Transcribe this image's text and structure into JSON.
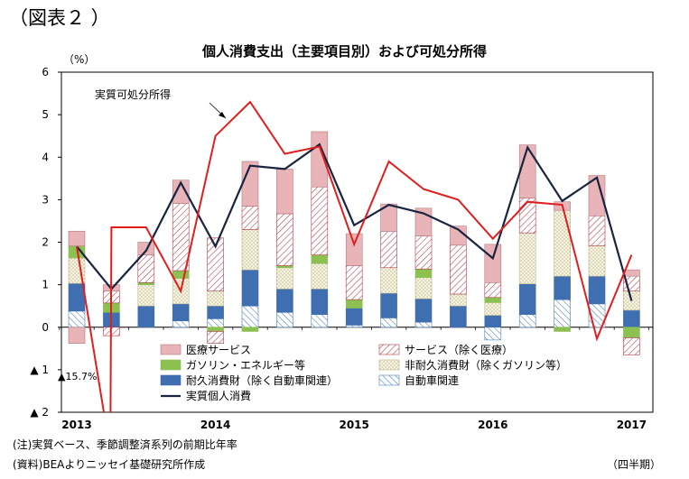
{
  "figure_label": "（図表２ ）",
  "notes": {
    "note1": "(注)実質ベース、季節調整済系列の前期比年率",
    "note2": "(資料)BEAよりニッセイ基礎研究所作成",
    "period_unit": "（四半期）"
  },
  "colors": {
    "medical": "#e8b4b8",
    "services_hatch": "#b03a48",
    "gasoline": "#8cc152",
    "nondurable_fill": "#f7f3df",
    "durable": "#3f6fb0",
    "auto_hatch": "#4a7fb5",
    "consumption_line": "#1a2440",
    "income_line": "#e01e1e"
  },
  "chart_data": {
    "type": "bar",
    "title": "個人消費支出（主要項目別）および可処分所得",
    "ylabel": "（%）",
    "ylim": [
      -2,
      6
    ],
    "yticks": [
      {
        "value": 6,
        "label": "6"
      },
      {
        "value": 5,
        "label": "5"
      },
      {
        "value": 4,
        "label": "4"
      },
      {
        "value": 3,
        "label": "3"
      },
      {
        "value": 2,
        "label": "2"
      },
      {
        "value": 1,
        "label": "1"
      },
      {
        "value": 0,
        "label": "0"
      },
      {
        "value": -1,
        "label": "▲ 1"
      },
      {
        "value": -2,
        "label": "▲ 2"
      }
    ],
    "x_labels": [
      {
        "index": 0,
        "label": "2013"
      },
      {
        "index": 4,
        "label": "2014"
      },
      {
        "index": 8,
        "label": "2015"
      },
      {
        "index": 12,
        "label": "2016"
      },
      {
        "index": 16,
        "label": "2017"
      }
    ],
    "n_quarters": 17,
    "grid": false,
    "legend_position": "bottom",
    "series": [
      {
        "name": "自動車関連",
        "values": [
          0.38,
          0.0,
          0.0,
          0.15,
          0.2,
          0.5,
          0.35,
          0.3,
          0.05,
          0.22,
          0.12,
          0.0,
          -0.3,
          0.3,
          0.65,
          0.55,
          0.0
        ]
      },
      {
        "name": "耐久消費財（除く自動車関連）",
        "values": [
          0.65,
          0.35,
          0.5,
          0.4,
          0.3,
          0.85,
          0.55,
          0.6,
          0.4,
          0.58,
          0.55,
          0.5,
          0.28,
          0.72,
          0.55,
          0.65,
          0.4
        ]
      },
      {
        "name": "非耐久消費財（除くガソリン等）",
        "values": [
          0.6,
          0.0,
          0.5,
          0.6,
          0.35,
          0.95,
          0.5,
          0.6,
          0.0,
          0.6,
          0.5,
          0.28,
          0.3,
          1.2,
          1.55,
          0.72,
          0.45
        ]
      },
      {
        "name": "ガソリン・エネルギー等",
        "values": [
          0.28,
          0.22,
          0.05,
          0.18,
          -0.1,
          -0.1,
          0.05,
          0.2,
          0.2,
          0.0,
          0.2,
          0.0,
          0.12,
          0.0,
          -0.1,
          0.0,
          -0.25
        ]
      },
      {
        "name": "サービス（除く医療）",
        "values": [
          0.0,
          0.28,
          0.65,
          1.58,
          1.25,
          0.55,
          1.22,
          1.6,
          0.8,
          0.85,
          0.78,
          1.15,
          0.35,
          0.82,
          0.0,
          0.7,
          0.35
        ]
      },
      {
        "name": "医療サービス",
        "values": [
          0.35,
          0.15,
          0.3,
          0.55,
          0.0,
          1.05,
          1.05,
          1.3,
          0.75,
          0.65,
          0.65,
          0.45,
          0.9,
          1.25,
          0.2,
          0.95,
          0.15
        ]
      }
    ],
    "negatives_extra": [
      {
        "name": "医療サービス",
        "values": [
          -0.38,
          0,
          0,
          0,
          0,
          0,
          0,
          0,
          0,
          0,
          0,
          0,
          0,
          0,
          0,
          0,
          0
        ]
      },
      {
        "name": "サービス（除く医療）",
        "values": [
          0,
          -0.2,
          0,
          0,
          -0.28,
          0,
          0,
          0,
          0,
          0,
          0,
          0,
          0,
          0,
          0,
          0,
          -0.4
        ]
      }
    ],
    "lines": [
      {
        "name": "実質個人消費",
        "values": [
          1.9,
          0.9,
          1.8,
          3.4,
          1.9,
          3.8,
          3.72,
          4.3,
          2.4,
          2.88,
          2.68,
          2.3,
          1.62,
          4.23,
          2.97,
          3.52,
          0.62
        ]
      },
      {
        "name": "実質可処分所得",
        "values": [
          1.9,
          2.35,
          2.35,
          0.85,
          4.5,
          5.3,
          4.08,
          4.25,
          1.95,
          3.9,
          3.25,
          3.0,
          2.08,
          2.95,
          2.88,
          -0.27,
          1.7
        ]
      }
    ],
    "annotations": [
      {
        "text": "実質可処分所得",
        "target_series": "実質可処分所得"
      },
      {
        "text": "▲15.7%",
        "target_series": "実質可処分所得"
      }
    ]
  }
}
